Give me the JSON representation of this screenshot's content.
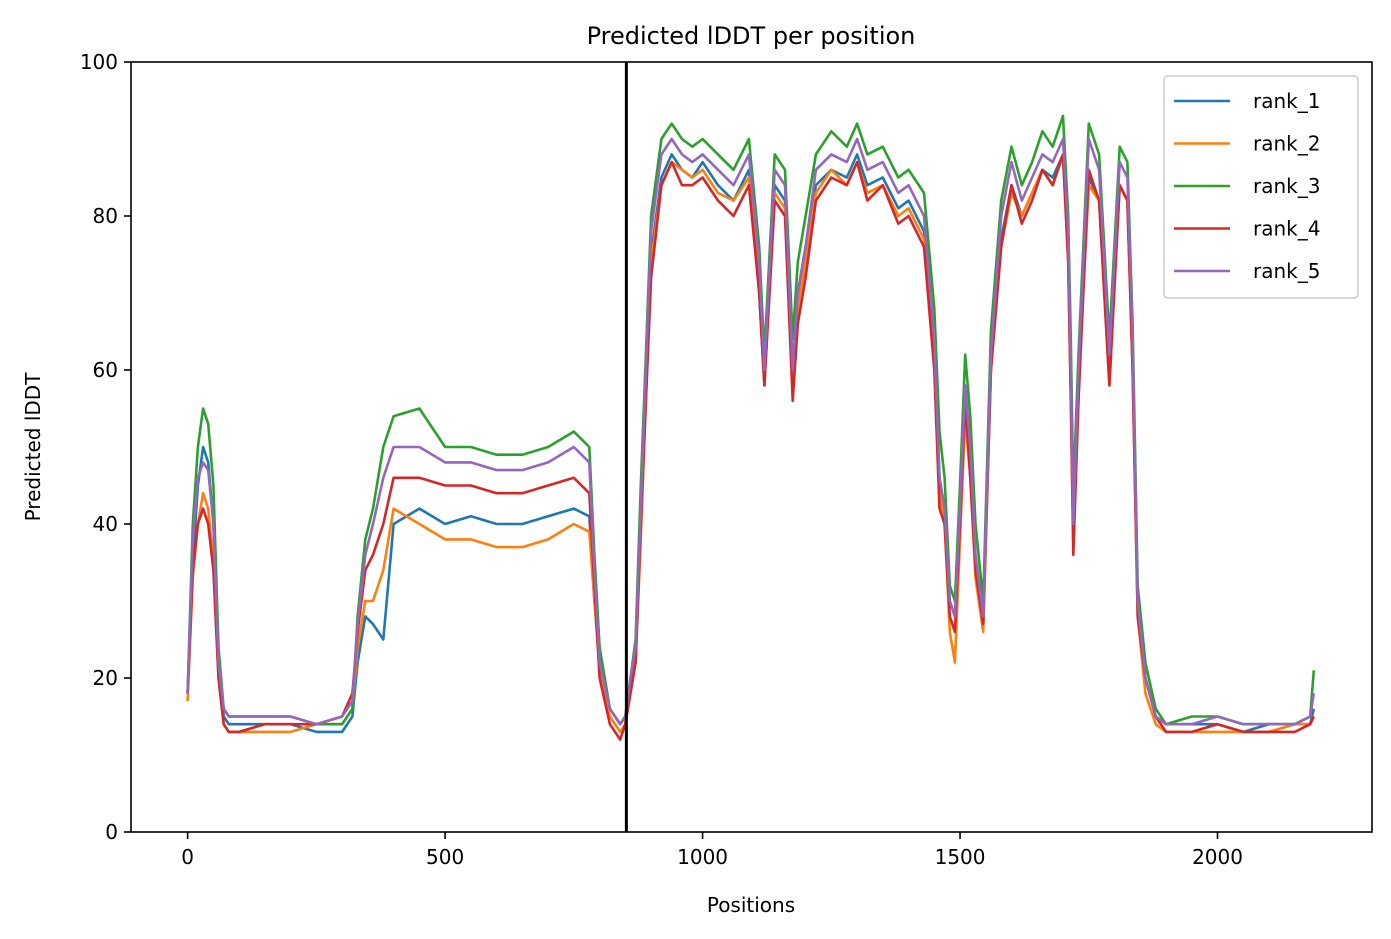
{
  "chart_data": {
    "type": "line",
    "title": "Predicted lDDT per position",
    "xlabel": "Positions",
    "ylabel": "Predicted lDDT",
    "xlim": [
      -110,
      2300
    ],
    "ylim": [
      0,
      100
    ],
    "xticks": [
      0,
      500,
      1000,
      1500,
      2000
    ],
    "yticks": [
      0,
      20,
      40,
      60,
      80,
      100
    ],
    "vline_x": 852,
    "legend_position": "top-right",
    "grid": false,
    "x": [
      0,
      10,
      20,
      30,
      40,
      50,
      60,
      70,
      80,
      100,
      150,
      200,
      250,
      300,
      320,
      330,
      345,
      360,
      380,
      400,
      450,
      500,
      550,
      600,
      650,
      700,
      750,
      780,
      790,
      800,
      820,
      840,
      850,
      860,
      870,
      880,
      890,
      900,
      920,
      940,
      960,
      980,
      1000,
      1030,
      1060,
      1090,
      1110,
      1120,
      1140,
      1160,
      1175,
      1185,
      1200,
      1220,
      1250,
      1280,
      1300,
      1320,
      1350,
      1380,
      1400,
      1430,
      1450,
      1460,
      1470,
      1480,
      1490,
      1500,
      1510,
      1520,
      1530,
      1545,
      1560,
      1580,
      1600,
      1620,
      1640,
      1660,
      1680,
      1700,
      1710,
      1715,
      1720,
      1730,
      1750,
      1770,
      1790,
      1810,
      1825,
      1835,
      1845,
      1860,
      1880,
      1900,
      1950,
      2000,
      2050,
      2100,
      2150,
      2180,
      2187
    ],
    "series": [
      {
        "name": "rank_1",
        "color": "#1f77b4",
        "values": [
          18,
          35,
          45,
          50,
          48,
          40,
          22,
          15,
          14,
          14,
          14,
          14,
          13,
          13,
          15,
          22,
          28,
          27,
          25,
          40,
          42,
          40,
          41,
          40,
          40,
          41,
          42,
          41,
          30,
          22,
          16,
          14,
          15,
          20,
          24,
          40,
          58,
          75,
          85,
          88,
          86,
          85,
          87,
          84,
          82,
          86,
          70,
          58,
          84,
          82,
          60,
          70,
          76,
          84,
          86,
          85,
          88,
          84,
          85,
          81,
          82,
          78,
          64,
          46,
          42,
          30,
          28,
          40,
          56,
          48,
          35,
          27,
          60,
          77,
          84,
          80,
          83,
          86,
          85,
          88,
          75,
          58,
          40,
          58,
          85,
          82,
          60,
          84,
          82,
          62,
          30,
          20,
          15,
          14,
          14,
          14,
          13,
          14,
          14,
          14,
          16
        ]
      },
      {
        "name": "rank_2",
        "color": "#ff7f0e",
        "values": [
          17,
          33,
          40,
          44,
          42,
          35,
          20,
          14,
          13,
          13,
          13,
          13,
          14,
          14,
          16,
          24,
          30,
          30,
          34,
          42,
          40,
          38,
          38,
          37,
          37,
          38,
          40,
          39,
          30,
          21,
          15,
          13,
          14,
          20,
          22,
          38,
          56,
          74,
          84,
          87,
          86,
          85,
          86,
          83,
          82,
          85,
          72,
          60,
          83,
          81,
          58,
          68,
          74,
          83,
          86,
          84,
          87,
          83,
          84,
          80,
          81,
          77,
          62,
          44,
          40,
          26,
          22,
          38,
          54,
          46,
          33,
          26,
          60,
          76,
          83,
          80,
          83,
          86,
          84,
          88,
          74,
          57,
          38,
          58,
          84,
          82,
          58,
          84,
          82,
          60,
          28,
          18,
          14,
          13,
          13,
          13,
          13,
          13,
          14,
          14,
          15
        ]
      },
      {
        "name": "rank_3",
        "color": "#2ca02c",
        "values": [
          18,
          40,
          50,
          55,
          53,
          45,
          24,
          16,
          15,
          15,
          15,
          15,
          14,
          14,
          16,
          28,
          38,
          42,
          50,
          54,
          55,
          50,
          50,
          49,
          49,
          50,
          52,
          50,
          36,
          24,
          16,
          14,
          15,
          20,
          25,
          45,
          62,
          80,
          90,
          92,
          90,
          89,
          90,
          88,
          86,
          90,
          76,
          62,
          88,
          86,
          64,
          74,
          80,
          88,
          91,
          89,
          92,
          88,
          89,
          85,
          86,
          83,
          68,
          52,
          46,
          32,
          30,
          45,
          62,
          54,
          40,
          30,
          65,
          82,
          89,
          84,
          87,
          91,
          89,
          93,
          80,
          64,
          44,
          62,
          92,
          88,
          64,
          89,
          87,
          66,
          32,
          22,
          16,
          14,
          15,
          15,
          14,
          14,
          14,
          15,
          21
        ]
      },
      {
        "name": "rank_4",
        "color": "#d62728",
        "values": [
          18,
          34,
          40,
          42,
          40,
          34,
          20,
          14,
          13,
          13,
          14,
          14,
          14,
          15,
          18,
          26,
          34,
          36,
          40,
          46,
          46,
          45,
          45,
          44,
          44,
          45,
          46,
          44,
          32,
          20,
          14,
          12,
          14,
          18,
          22,
          40,
          56,
          72,
          84,
          87,
          84,
          84,
          85,
          82,
          80,
          84,
          70,
          58,
          82,
          80,
          56,
          66,
          72,
          82,
          85,
          84,
          87,
          82,
          84,
          79,
          80,
          76,
          60,
          42,
          40,
          28,
          26,
          40,
          56,
          46,
          34,
          27,
          60,
          76,
          84,
          79,
          82,
          86,
          84,
          88,
          74,
          56,
          36,
          56,
          86,
          82,
          58,
          84,
          82,
          60,
          28,
          20,
          15,
          13,
          13,
          14,
          13,
          13,
          13,
          14,
          15
        ]
      },
      {
        "name": "rank_5",
        "color": "#9467bd",
        "values": [
          18,
          38,
          46,
          48,
          47,
          40,
          22,
          16,
          15,
          15,
          15,
          15,
          14,
          15,
          17,
          27,
          36,
          40,
          46,
          50,
          50,
          48,
          48,
          47,
          47,
          48,
          50,
          48,
          34,
          22,
          16,
          14,
          15,
          20,
          24,
          42,
          60,
          78,
          88,
          90,
          88,
          87,
          88,
          86,
          84,
          88,
          74,
          60,
          86,
          84,
          60,
          70,
          76,
          86,
          88,
          87,
          90,
          86,
          87,
          83,
          84,
          80,
          64,
          46,
          42,
          30,
          28,
          42,
          58,
          50,
          36,
          28,
          62,
          80,
          87,
          82,
          85,
          88,
          87,
          90,
          78,
          60,
          40,
          60,
          90,
          86,
          62,
          87,
          85,
          64,
          30,
          20,
          15,
          14,
          14,
          15,
          14,
          14,
          14,
          15,
          18
        ]
      }
    ]
  }
}
